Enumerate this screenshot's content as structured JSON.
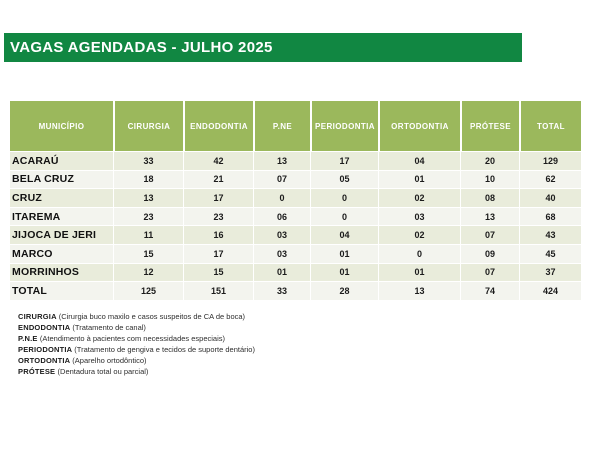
{
  "title": "VAGAS AGENDADAS - JULHO 2025",
  "colors": {
    "title_bar_green": "#118742",
    "header_olive_green": "#9bb85c",
    "row_stripe_dark": "#e9ecdb",
    "row_stripe_light": "#f3f4ee",
    "header_text": "#ffffff"
  },
  "table": {
    "columns": [
      "MUNICÍPIO",
      "CIRURGIA",
      "ENDODONTIA",
      "P.NE",
      "PERIODONTIA",
      "ORTODONTIA",
      "PRÓTESE",
      "TOTAL"
    ],
    "rows": [
      {
        "municipio": "ACARAÚ",
        "values": [
          "33",
          "42",
          "13",
          "17",
          "04",
          "20",
          "129"
        ]
      },
      {
        "municipio": "BELA CRUZ",
        "values": [
          "18",
          "21",
          "07",
          "05",
          "01",
          "10",
          "62"
        ]
      },
      {
        "municipio": "CRUZ",
        "values": [
          "13",
          "17",
          "0",
          "0",
          "02",
          "08",
          "40"
        ]
      },
      {
        "municipio": "ITAREMA",
        "values": [
          "23",
          "23",
          "06",
          "0",
          "03",
          "13",
          "68"
        ]
      },
      {
        "municipio": "JIJOCA DE JERI",
        "values": [
          "11",
          "16",
          "03",
          "04",
          "02",
          "07",
          "43"
        ]
      },
      {
        "municipio": "MARCO",
        "values": [
          "15",
          "17",
          "03",
          "01",
          "0",
          "09",
          "45"
        ]
      },
      {
        "municipio": "MORRINHOS",
        "values": [
          "12",
          "15",
          "01",
          "01",
          "01",
          "07",
          "37"
        ]
      },
      {
        "municipio": "TOTAL",
        "values": [
          "125",
          "151",
          "33",
          "28",
          "13",
          "74",
          "424"
        ]
      }
    ]
  },
  "footnotes": [
    {
      "term": "CIRURGIA",
      "description": "(Cirurgia buco maxilo e casos suspeitos de CA de boca)"
    },
    {
      "term": "ENDODONTIA",
      "description": "(Tratamento de canal)"
    },
    {
      "term": "P.N.E",
      "description": "(Atendimento à pacientes com necessidades especiais)"
    },
    {
      "term": "PERIODONTIA",
      "description": "(Tratamento de gengiva e tecidos de suporte dentário)"
    },
    {
      "term": "ORTODONTIA",
      "description": "(Aparelho ortodôntico)"
    },
    {
      "term": "PRÓTESE",
      "description": "(Dentadura total ou parcial)"
    }
  ]
}
